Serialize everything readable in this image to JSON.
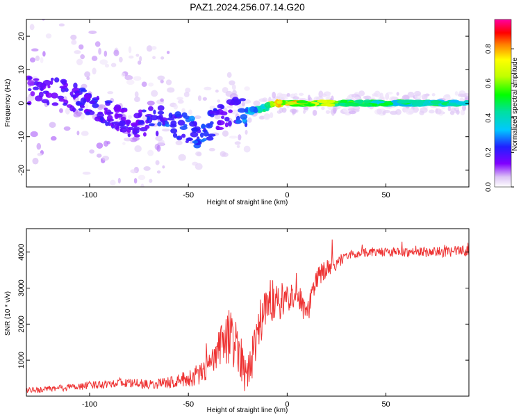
{
  "figure": {
    "title": "PAZ1.2024.256.07.14.G20"
  },
  "chart_data": [
    {
      "type": "heatmap",
      "title": "PAZ1.2024.256.07.14.G20",
      "xlabel": "Height of straight line (km)",
      "ylabel": "Frequency (Hz)",
      "xlim": [
        -132,
        92
      ],
      "ylim": [
        -25,
        25
      ],
      "x_ticks": [
        -100,
        -50,
        0,
        50
      ],
      "y_ticks": [
        -20,
        -10,
        0,
        10,
        20
      ],
      "x_tick_labels": [
        "-100",
        "-50",
        "0",
        "50"
      ],
      "y_tick_labels": [
        "-20",
        "-10",
        "0",
        "10",
        "20"
      ],
      "grid": false,
      "colorbar": {
        "label": "Normalized spectral amplitude",
        "range": [
          0,
          0.97
        ],
        "ticks": [
          0.0,
          0.2,
          0.4,
          0.6,
          0.8
        ],
        "tick_labels": [
          "0.0",
          "0.2",
          "0.4",
          "0.6",
          "0.8"
        ]
      },
      "ridge": {
        "description_points": [
          {
            "x": -120,
            "y": 4,
            "amp": 0.2
          },
          {
            "x": -100,
            "y": 0,
            "amp": 0.25
          },
          {
            "x": -80,
            "y": -6,
            "amp": 0.2
          },
          {
            "x": -60,
            "y": -5,
            "amp": 0.3
          },
          {
            "x": -45,
            "y": -9,
            "amp": 0.32
          },
          {
            "x": -30,
            "y": -3,
            "amp": 0.2
          },
          {
            "x": -15,
            "y": -2,
            "amp": 0.45
          },
          {
            "x": -5,
            "y": 0,
            "amp": 0.9
          },
          {
            "x": 20,
            "y": 0,
            "amp": 0.75
          },
          {
            "x": 50,
            "y": 0,
            "amp": 0.55
          },
          {
            "x": 90,
            "y": 0,
            "amp": 0.5
          }
        ]
      }
    },
    {
      "type": "line",
      "xlabel": "Height of straight line (km)",
      "ylabel": "SNR (10 * v/v)",
      "xlim": [
        -132,
        92
      ],
      "ylim": [
        0,
        4650
      ],
      "x_ticks": [
        -100,
        -50,
        0,
        50
      ],
      "y_ticks": [
        1000,
        2000,
        3000,
        4000
      ],
      "x_tick_labels": [
        "-100",
        "-50",
        "0",
        "50"
      ],
      "y_tick_labels": [
        "1000",
        "2000",
        "3000",
        "4000"
      ],
      "grid": false,
      "series": [
        {
          "color": "#ee3333",
          "envelope": {
            "x": [
              -132,
              -120,
              -100,
              -85,
              -70,
              -60,
              -50,
              -45,
              -40,
              -35,
              -30,
              -25,
              -20,
              -15,
              -10,
              -5,
              0,
              5,
              10,
              15,
              20,
              25,
              30,
              40,
              50,
              60,
              70,
              80,
              92
            ],
            "y": [
              150,
              200,
              300,
              380,
              320,
              380,
              480,
              600,
              800,
              1200,
              1700,
              1400,
              500,
              1800,
              2700,
              2600,
              2700,
              2900,
              2200,
              3300,
              3500,
              3700,
              3900,
              4000,
              4000,
              4000,
              4000,
              4000,
              4050
            ]
          },
          "noise_amplitude": {
            "x": [
              -132,
              -60,
              -40,
              -30,
              -20,
              -10,
              0,
              20,
              30,
              92
            ],
            "y": [
              80,
              150,
              350,
              800,
              600,
              700,
              400,
              300,
              120,
              150
            ]
          }
        }
      ]
    }
  ]
}
